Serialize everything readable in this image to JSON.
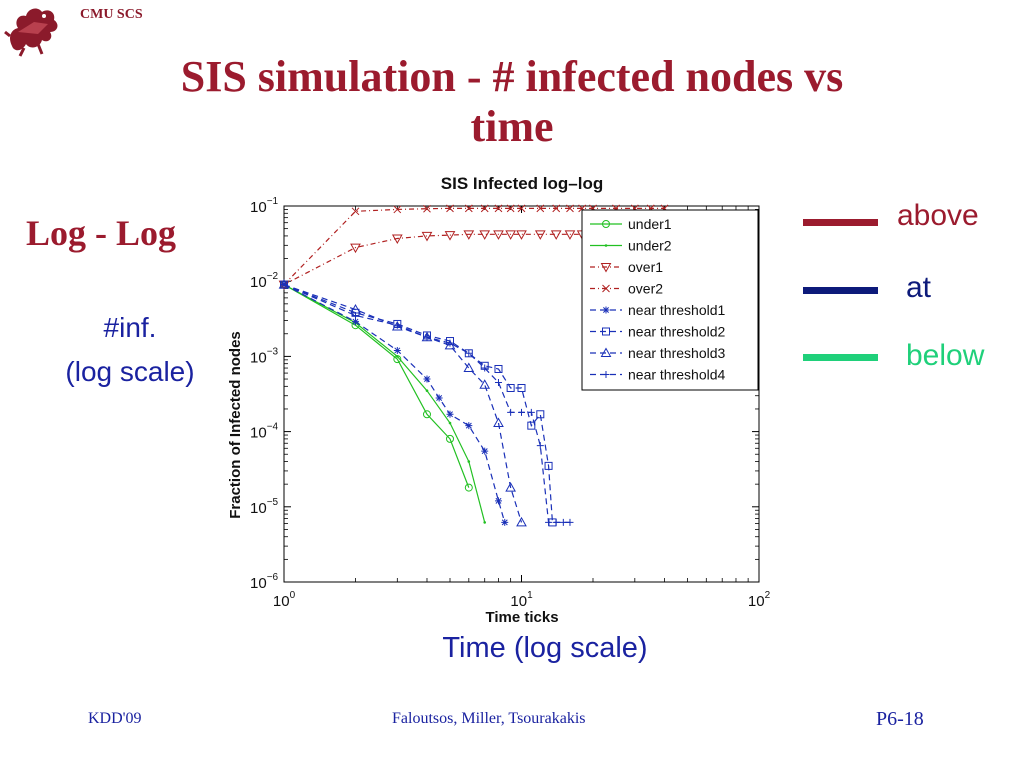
{
  "header": {
    "org": "CMU SCS"
  },
  "slide": {
    "title_line1": "SIS simulation - # infected nodes vs",
    "title_line2": "time",
    "subtitle": "Log - Log",
    "ylabel_line1": "#inf.",
    "ylabel_line2": "(log scale)",
    "xlabel_note": "Time (log scale)"
  },
  "legend": [
    {
      "label": "above",
      "color": "#9b1b2e"
    },
    {
      "label": "at",
      "color": "#0d1a7a"
    },
    {
      "label": "below",
      "color": "#1fd07a"
    }
  ],
  "footer": {
    "left": "KDD'09",
    "center": "Faloutsos, Miller, Tsourakakis",
    "right": "P6-18"
  },
  "chart_data": {
    "type": "line",
    "title": "SIS Infected log–log",
    "xlabel": "Time ticks",
    "ylabel": "Fraction of Infected nodes",
    "xscale": "log",
    "yscale": "log",
    "xlim": [
      1,
      100
    ],
    "ylim": [
      1e-06,
      0.1
    ],
    "x_ticks": [
      {
        "value": 1,
        "base": "10",
        "exp": "0"
      },
      {
        "value": 10,
        "base": "10",
        "exp": "1"
      },
      {
        "value": 100,
        "base": "10",
        "exp": "2"
      }
    ],
    "y_ticks": [
      {
        "value": 0.1,
        "base": "10",
        "exp": "−1"
      },
      {
        "value": 0.01,
        "base": "10",
        "exp": "−2"
      },
      {
        "value": 0.001,
        "base": "10",
        "exp": "−3"
      },
      {
        "value": 0.0001,
        "base": "10",
        "exp": "−4"
      },
      {
        "value": 1e-05,
        "base": "10",
        "exp": "−5"
      },
      {
        "value": 1e-06,
        "base": "10",
        "exp": "−6"
      }
    ],
    "grid": false,
    "legend_position": "top-right",
    "series": [
      {
        "name": "under1",
        "color": "#22c022",
        "dash": "",
        "marker": "circle",
        "x": [
          1,
          2,
          3,
          4,
          5,
          6
        ],
        "y": [
          0.009,
          0.0026,
          0.00092,
          0.00017,
          8e-05,
          1.8e-05
        ]
      },
      {
        "name": "under2",
        "color": "#22c022",
        "dash": "",
        "marker": "point",
        "x": [
          1,
          2,
          3,
          4,
          5,
          6,
          7
        ],
        "y": [
          0.009,
          0.0028,
          0.001,
          0.00035,
          0.00013,
          4e-05,
          6.2e-06
        ]
      },
      {
        "name": "over1",
        "color": "#b02020",
        "dash": "5,3,1,3",
        "marker": "triangle-down",
        "x": [
          1,
          2,
          3,
          4,
          5,
          6,
          7,
          8,
          9,
          10,
          12,
          14,
          16,
          18,
          20,
          25,
          30,
          35,
          40
        ],
        "y": [
          0.009,
          0.028,
          0.037,
          0.04,
          0.041,
          0.042,
          0.042,
          0.042,
          0.042,
          0.042,
          0.042,
          0.042,
          0.042,
          0.042,
          0.042,
          0.042,
          0.042,
          0.042,
          0.042
        ]
      },
      {
        "name": "over2",
        "color": "#b02020",
        "dash": "5,3,1,3",
        "marker": "x",
        "x": [
          1,
          2,
          3,
          4,
          5,
          6,
          7,
          8,
          9,
          10,
          12,
          14,
          16,
          18,
          20,
          25,
          30,
          35,
          40
        ],
        "y": [
          0.009,
          0.085,
          0.09,
          0.092,
          0.093,
          0.093,
          0.093,
          0.093,
          0.093,
          0.093,
          0.093,
          0.093,
          0.093,
          0.093,
          0.093,
          0.093,
          0.093,
          0.093,
          0.093
        ]
      },
      {
        "name": "near threshold1",
        "color": "#1a30b8",
        "dash": "6,4",
        "marker": "star",
        "x": [
          1,
          2,
          3,
          4,
          4.5,
          5,
          6,
          7,
          8,
          8.5
        ],
        "y": [
          0.009,
          0.0029,
          0.0012,
          0.0005,
          0.00028,
          0.00017,
          0.00012,
          5.5e-05,
          1.2e-05,
          6.2e-06
        ]
      },
      {
        "name": "near threshold2",
        "color": "#1a30b8",
        "dash": "6,4",
        "marker": "square",
        "x": [
          1,
          2,
          3,
          4,
          5,
          6,
          7,
          8,
          9,
          10,
          11,
          12,
          13,
          13.5
        ],
        "y": [
          0.009,
          0.0038,
          0.0027,
          0.0019,
          0.0016,
          0.0011,
          0.00075,
          0.00068,
          0.00038,
          0.00038,
          0.00012,
          0.00017,
          3.5e-05,
          6.2e-06
        ]
      },
      {
        "name": "near threshold3",
        "color": "#1a30b8",
        "dash": "6,4",
        "marker": "triangle-up",
        "x": [
          1,
          2,
          3,
          4,
          5,
          6,
          7,
          8,
          9,
          10
        ],
        "y": [
          0.009,
          0.0042,
          0.0025,
          0.0018,
          0.0014,
          0.0007,
          0.00042,
          0.00013,
          1.8e-05,
          6.2e-06
        ]
      },
      {
        "name": "near threshold4",
        "color": "#1a30b8",
        "dash": "6,4",
        "marker": "plus",
        "x": [
          1,
          2,
          3,
          4,
          5,
          6,
          7,
          8,
          9,
          10,
          11,
          12,
          13,
          14,
          15,
          16
        ],
        "y": [
          0.009,
          0.0035,
          0.0026,
          0.0018,
          0.0015,
          0.0011,
          0.0007,
          0.00045,
          0.00018,
          0.00018,
          0.00018,
          6.5e-05,
          6.2e-06,
          6.2e-06,
          6.2e-06,
          6.2e-06
        ]
      }
    ]
  }
}
